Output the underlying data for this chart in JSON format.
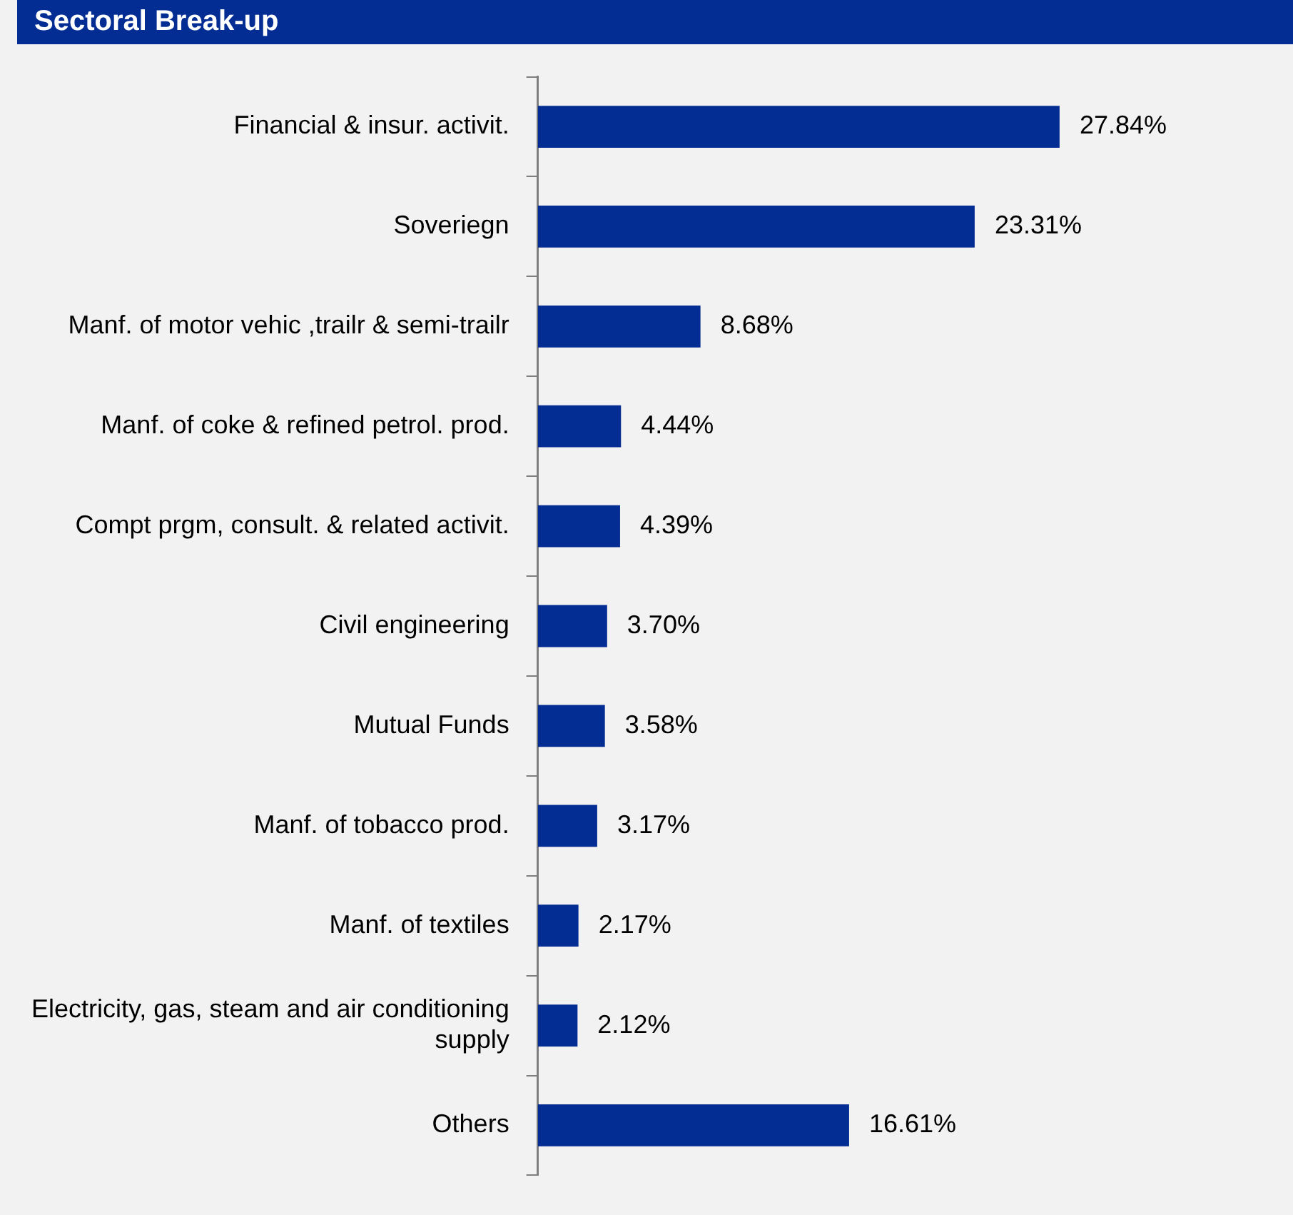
{
  "chart_data": {
    "type": "bar",
    "orientation": "horizontal",
    "title": "Sectoral Break-up",
    "categories": [
      "Financial & insur. activit.",
      "Soveriegn",
      "Manf. of motor vehic ,trailr & semi-trailr",
      "Manf. of coke & refined petrol. prod.",
      "Compt prgm, consult. & related activit.",
      "Civil engineering",
      "Mutual Funds",
      "Manf. of tobacco prod.",
      "Manf. of textiles",
      "Electricity, gas, steam and air conditioning supply",
      "Others"
    ],
    "values": [
      27.84,
      23.31,
      8.68,
      4.44,
      4.39,
      3.7,
      3.58,
      3.17,
      2.17,
      2.12,
      16.61
    ],
    "value_labels": [
      "27.84%",
      "23.31%",
      "8.68%",
      "4.44%",
      "4.39%",
      "3.70%",
      "3.58%",
      "3.17%",
      "2.17%",
      "2.12%",
      "16.61%"
    ],
    "color": "#042d94",
    "tick_labels": "y",
    "grid": false,
    "legend": false
  }
}
